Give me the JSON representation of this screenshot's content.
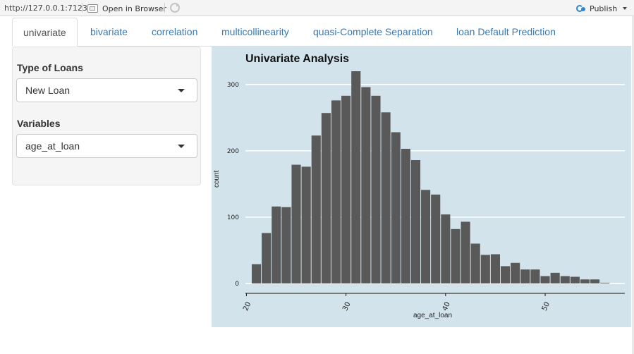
{
  "browser": {
    "url": "http://127.0.0.1:7123",
    "open_in_browser": "Open in Browser",
    "publish": "Publish"
  },
  "tabs": [
    {
      "label": "univariate",
      "active": true
    },
    {
      "label": "bivariate",
      "active": false
    },
    {
      "label": "correlation",
      "active": false
    },
    {
      "label": "multicollinearity",
      "active": false
    },
    {
      "label": "quasi-Complete Separation",
      "active": false
    },
    {
      "label": "loan Default Prediction",
      "active": false
    }
  ],
  "sidebar": {
    "loan_type_label": "Type of Loans",
    "loan_type_value": "New Loan",
    "variables_label": "Variables",
    "variables_value": "age_at_loan"
  },
  "plot": {
    "title": "Univariate Analysis",
    "background": "#d3e3eb",
    "bar_color": "#595959"
  },
  "chart_data": {
    "type": "bar",
    "title": "Univariate Analysis",
    "xlabel": "age_at_loan",
    "ylabel": "count",
    "xlim": [
      19.9,
      58
    ],
    "ylim": [
      -15,
      320
    ],
    "yticks": [
      0,
      100,
      200,
      300
    ],
    "xticks": [
      20,
      30,
      40,
      50
    ],
    "grid": true,
    "series": [
      {
        "x": [
          21,
          22,
          23,
          24,
          25,
          26,
          27,
          28,
          29,
          30,
          31,
          32,
          33,
          34,
          35,
          36,
          37,
          38,
          39,
          40,
          41,
          42,
          43,
          44,
          45,
          46,
          47,
          48,
          49,
          50,
          51,
          52,
          53,
          54,
          55,
          56
        ],
        "values": [
          29,
          76,
          116,
          115,
          179,
          176,
          223,
          257,
          276,
          283,
          320,
          296,
          283,
          258,
          228,
          203,
          186,
          141,
          134,
          104,
          82,
          93,
          60,
          43,
          44,
          26,
          31,
          21,
          21,
          11,
          16,
          11,
          10,
          6,
          6,
          1
        ]
      }
    ]
  }
}
